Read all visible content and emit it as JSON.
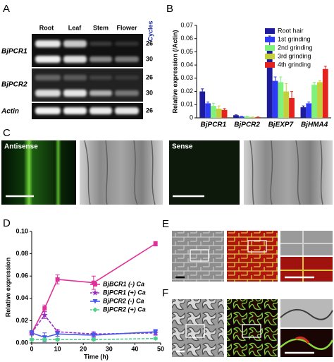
{
  "panel_labels": [
    "A",
    "B",
    "C",
    "D",
    "E",
    "F"
  ],
  "gel": {
    "lanes": [
      "Root",
      "Leaf",
      "Stem",
      "Flower"
    ],
    "cycles_header": "Cycles",
    "rows": [
      {
        "gene": "BjPCR1",
        "cycles": [
          "26",
          "30"
        ]
      },
      {
        "gene": "BjPCR2",
        "cycles": [
          "26",
          "30"
        ]
      },
      {
        "gene": "Actin",
        "cycles": [
          "26"
        ]
      }
    ]
  },
  "in_situ": {
    "left_label": "Antisense",
    "right_label": "Sense"
  },
  "chart_data": [
    {
      "type": "bar",
      "y_label": "Relative expression (/Actin)",
      "categories": [
        "BjPCR1",
        "BjPCR2",
        "BjEXP7",
        "BjHMA4"
      ],
      "series": [
        {
          "name": "Root hair",
          "color": "#1c1c9c",
          "values": [
            0.02,
            0.002,
            0.055,
            0.008
          ],
          "errors": [
            0.002,
            0.0003,
            0.007,
            0.001
          ]
        },
        {
          "name": "1st grinding",
          "color": "#2f3cf5",
          "values": [
            0.011,
            0.001,
            0.028,
            0.011
          ],
          "errors": [
            0.001,
            0.0002,
            0.003,
            0.001
          ]
        },
        {
          "name": "2nd grinding",
          "color": "#7ef27a",
          "values": [
            0.009,
            0.001,
            0.027,
            0.025
          ],
          "errors": [
            0.002,
            0.0002,
            0.004,
            0.002
          ]
        },
        {
          "name": "3rd grinding",
          "color": "#c4cf3c",
          "values": [
            0.007,
            0.0005,
            0.02,
            0.027
          ],
          "errors": [
            0.002,
            0.0002,
            0.006,
            0.001
          ]
        },
        {
          "name": "4th grinding",
          "color": "#e4231e",
          "values": [
            0.006,
            0.0005,
            0.015,
            0.037
          ],
          "errors": [
            0.001,
            0.0002,
            0.005,
            0.002
          ]
        }
      ],
      "ylim": [
        0,
        0.07
      ],
      "yticks": [
        0,
        0.01,
        0.02,
        0.03,
        0.04,
        0.05,
        0.06,
        0.07
      ],
      "legend": "upper right"
    },
    {
      "type": "line",
      "x_label": "Time (h)",
      "y_label": "Relative expression",
      "x": [
        0,
        5,
        10,
        24,
        48
      ],
      "xlim": [
        0,
        50
      ],
      "xticks": [
        0,
        10,
        20,
        30,
        40,
        50
      ],
      "ylim": [
        0,
        0.1
      ],
      "yticks": [
        {
          "value": 0,
          "label": "0.00"
        },
        {
          "value": 0.02,
          "label": "0.02"
        },
        {
          "value": 0.04,
          "label": "0.04"
        },
        {
          "value": 0.06,
          "label": "0.06"
        },
        {
          "value": 0.08,
          "label": "0.08"
        },
        {
          "value": 0.1,
          "label": "0.10"
        }
      ],
      "series": [
        {
          "name": "BjBCR1 (-) Ca",
          "color": "#e0309a",
          "marker": "square",
          "dashed": false,
          "values": [
            0.009,
            0.031,
            0.057,
            0.054,
            0.089
          ],
          "errors": [
            0.002,
            0.003,
            0.004,
            0.006,
            0.002
          ]
        },
        {
          "name": "BjPCR1 (+) Ca",
          "color": "#9a2fc4",
          "marker": "star",
          "dashed": true,
          "values": [
            0.009,
            0.025,
            0.01,
            0.008,
            0.009
          ],
          "errors": [
            0.002,
            0.003,
            0.002,
            0.002,
            0.002
          ]
        },
        {
          "name": "BjPCR2 (-) Ca",
          "color": "#4a5ae8",
          "marker": "triangle-down",
          "dashed": false,
          "values": [
            0.009,
            0.005,
            0.008,
            0.007,
            0.01
          ],
          "errors": [
            0.002,
            0.004,
            0.002,
            0.002,
            0.002
          ]
        },
        {
          "name": "BjPCR2 (+) Ca",
          "color": "#4fd08a",
          "marker": "diamond",
          "dashed": true,
          "values": [
            0.003,
            0.003,
            0.003,
            0.003,
            0.004
          ],
          "errors": [
            0.001,
            0.001,
            0.001,
            0.001,
            0.001
          ]
        }
      ],
      "legend": "center right"
    }
  ]
}
